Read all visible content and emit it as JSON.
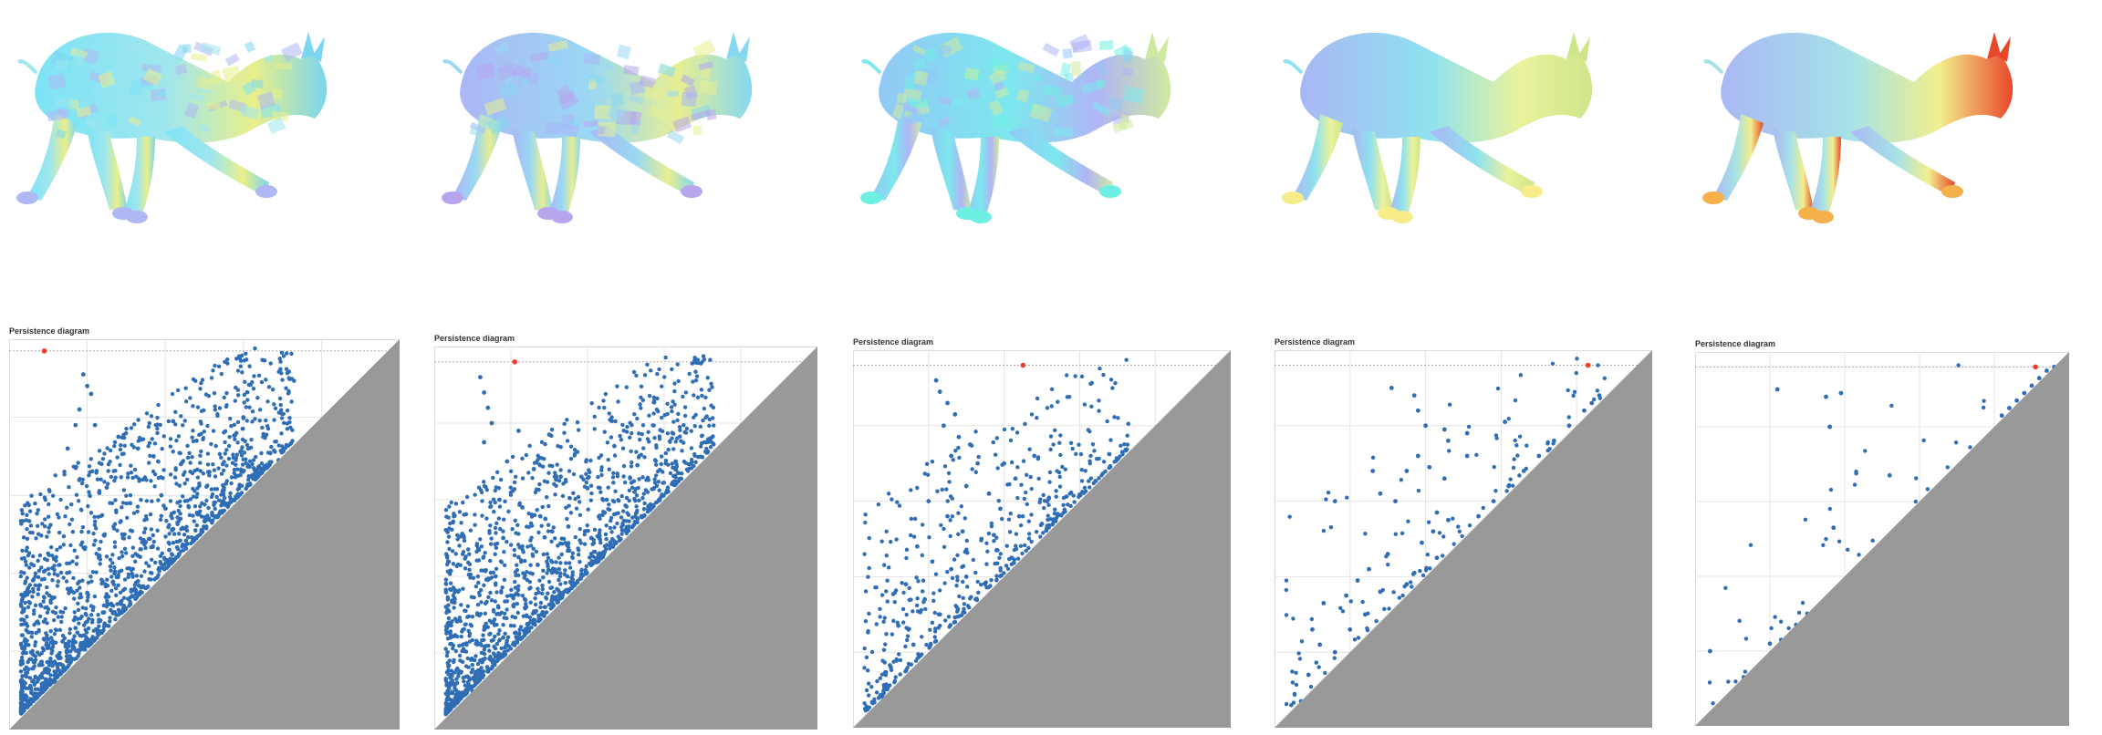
{
  "diagram_title": "Persistence diagram",
  "colors": {
    "point": "#2f6db5",
    "infinite_point": "#e8402a",
    "triangle": "#999999",
    "grid": "#e4e4e4",
    "dotted_line": "#aaaaaa"
  },
  "chart_data": [
    {
      "type": "scatter",
      "title": "Persistence diagram",
      "mesh_colormap": "cool-patchy",
      "point_count_estimate": 2600,
      "xlim": [
        0,
        1
      ],
      "ylim": [
        0,
        1
      ],
      "grid": true,
      "infinite_point": [
        0.09,
        0.97
      ],
      "points": [
        [
          0.19,
          0.91
        ],
        [
          0.2,
          0.88
        ],
        [
          0.21,
          0.86
        ],
        [
          0.18,
          0.82
        ],
        [
          0.17,
          0.78
        ],
        [
          0.22,
          0.78
        ],
        [
          0.15,
          0.72
        ],
        [
          0.42,
          0.79
        ],
        [
          0.6,
          0.8
        ],
        [
          0.28,
          0.75
        ],
        [
          0.33,
          0.72
        ],
        [
          0.37,
          0.7
        ],
        [
          0.44,
          0.68
        ],
        [
          0.51,
          0.66
        ],
        [
          0.48,
          0.74
        ],
        [
          0.55,
          0.62
        ],
        [
          0.61,
          0.6
        ],
        [
          0.64,
          0.55
        ],
        [
          0.69,
          0.69
        ],
        [
          0.74,
          0.72
        ],
        [
          0.25,
          0.62
        ],
        [
          0.31,
          0.58
        ],
        [
          0.39,
          0.6
        ],
        [
          0.46,
          0.57
        ],
        [
          0.52,
          0.55
        ],
        [
          0.57,
          0.52
        ],
        [
          0.29,
          0.5
        ],
        [
          0.35,
          0.48
        ],
        [
          0.41,
          0.46
        ],
        [
          0.47,
          0.44
        ],
        [
          0.23,
          0.44
        ],
        [
          0.27,
          0.4
        ],
        [
          0.33,
          0.38
        ],
        [
          0.38,
          0.36
        ],
        [
          0.2,
          0.35
        ],
        [
          0.24,
          0.3
        ],
        [
          0.29,
          0.28
        ],
        [
          0.17,
          0.26
        ],
        [
          0.21,
          0.22
        ],
        [
          0.15,
          0.18
        ],
        [
          0.12,
          0.12
        ],
        [
          0.1,
          0.08
        ]
      ]
    },
    {
      "type": "scatter",
      "title": "Persistence diagram",
      "mesh_colormap": "cool-patchy",
      "point_count_estimate": 1500,
      "xlim": [
        0,
        1
      ],
      "ylim": [
        0,
        1
      ],
      "grid": true,
      "infinite_point": [
        0.21,
        0.96
      ],
      "points": [
        [
          0.12,
          0.92
        ],
        [
          0.13,
          0.88
        ],
        [
          0.14,
          0.84
        ],
        [
          0.15,
          0.8
        ],
        [
          0.13,
          0.75
        ],
        [
          0.22,
          0.78
        ],
        [
          0.3,
          0.77
        ],
        [
          0.47,
          0.74
        ],
        [
          0.53,
          0.69
        ],
        [
          0.19,
          0.7
        ],
        [
          0.26,
          0.68
        ],
        [
          0.33,
          0.66
        ],
        [
          0.4,
          0.63
        ],
        [
          0.45,
          0.6
        ],
        [
          0.17,
          0.6
        ],
        [
          0.23,
          0.58
        ],
        [
          0.29,
          0.55
        ],
        [
          0.35,
          0.53
        ],
        [
          0.41,
          0.5
        ],
        [
          0.18,
          0.5
        ],
        [
          0.22,
          0.45
        ],
        [
          0.27,
          0.43
        ],
        [
          0.32,
          0.41
        ],
        [
          0.36,
          0.38
        ],
        [
          0.16,
          0.4
        ],
        [
          0.2,
          0.35
        ],
        [
          0.24,
          0.32
        ],
        [
          0.28,
          0.3
        ],
        [
          0.15,
          0.28
        ],
        [
          0.18,
          0.24
        ],
        [
          0.22,
          0.2
        ],
        [
          0.12,
          0.18
        ],
        [
          0.15,
          0.14
        ],
        [
          0.1,
          0.1
        ],
        [
          0.08,
          0.06
        ],
        [
          0.63,
          0.7
        ],
        [
          0.71,
          0.75
        ]
      ]
    },
    {
      "type": "scatter",
      "title": "Persistence diagram",
      "mesh_colormap": "cyan-smoothing",
      "point_count_estimate": 500,
      "xlim": [
        0,
        1
      ],
      "ylim": [
        0,
        1
      ],
      "grid": true,
      "infinite_point": [
        0.45,
        0.96
      ],
      "points": [
        [
          0.22,
          0.92
        ],
        [
          0.23,
          0.89
        ],
        [
          0.25,
          0.86
        ],
        [
          0.27,
          0.83
        ],
        [
          0.24,
          0.8
        ],
        [
          0.28,
          0.77
        ],
        [
          0.31,
          0.75
        ],
        [
          0.26,
          0.72
        ],
        [
          0.33,
          0.7
        ],
        [
          0.4,
          0.7
        ],
        [
          0.48,
          0.72
        ],
        [
          0.43,
          0.66
        ],
        [
          0.68,
          0.69
        ],
        [
          0.3,
          0.64
        ],
        [
          0.36,
          0.62
        ],
        [
          0.39,
          0.58
        ],
        [
          0.44,
          0.56
        ],
        [
          0.5,
          0.54
        ],
        [
          0.2,
          0.6
        ],
        [
          0.25,
          0.56
        ],
        [
          0.29,
          0.52
        ],
        [
          0.34,
          0.5
        ],
        [
          0.38,
          0.47
        ],
        [
          0.42,
          0.45
        ],
        [
          0.17,
          0.48
        ],
        [
          0.21,
          0.44
        ],
        [
          0.26,
          0.42
        ],
        [
          0.3,
          0.4
        ],
        [
          0.35,
          0.38
        ],
        [
          0.14,
          0.38
        ],
        [
          0.19,
          0.34
        ],
        [
          0.23,
          0.3
        ],
        [
          0.27,
          0.28
        ],
        [
          0.12,
          0.27
        ],
        [
          0.16,
          0.22
        ],
        [
          0.2,
          0.18
        ],
        [
          0.1,
          0.16
        ],
        [
          0.13,
          0.12
        ],
        [
          0.08,
          0.08
        ],
        [
          0.6,
          0.58
        ]
      ]
    },
    {
      "type": "scatter",
      "title": "Persistence diagram",
      "mesh_colormap": "rainbow-smooth",
      "point_count_estimate": 120,
      "xlim": [
        0,
        1
      ],
      "ylim": [
        0,
        1
      ],
      "grid": true,
      "infinite_point": [
        0.83,
        0.96
      ],
      "points": [
        [
          0.31,
          0.9
        ],
        [
          0.37,
          0.88
        ],
        [
          0.38,
          0.84
        ],
        [
          0.4,
          0.8
        ],
        [
          0.45,
          0.79
        ],
        [
          0.46,
          0.76
        ],
        [
          0.38,
          0.72
        ],
        [
          0.35,
          0.68
        ],
        [
          0.41,
          0.69
        ],
        [
          0.45,
          0.66
        ],
        [
          0.51,
          0.78
        ],
        [
          0.51,
          0.72
        ],
        [
          0.61,
          0.81
        ],
        [
          0.26,
          0.68
        ],
        [
          0.28,
          0.62
        ],
        [
          0.16,
          0.6
        ],
        [
          0.32,
          0.6
        ],
        [
          0.43,
          0.57
        ],
        [
          0.46,
          0.55
        ],
        [
          0.42,
          0.52
        ],
        [
          0.39,
          0.49
        ],
        [
          0.43,
          0.45
        ],
        [
          0.3,
          0.46
        ],
        [
          0.25,
          0.42
        ],
        [
          0.22,
          0.39
        ],
        [
          0.35,
          0.38
        ],
        [
          0.37,
          0.41
        ],
        [
          0.28,
          0.36
        ],
        [
          0.19,
          0.35
        ],
        [
          0.13,
          0.33
        ],
        [
          0.1,
          0.26
        ],
        [
          0.12,
          0.22
        ],
        [
          0.16,
          0.2
        ],
        [
          0.09,
          0.14
        ],
        [
          0.12,
          0.11
        ],
        [
          0.17,
          0.14
        ],
        [
          0.07,
          0.07
        ],
        [
          0.2,
          0.26
        ],
        [
          0.24,
          0.3
        ],
        [
          0.54,
          0.56
        ],
        [
          0.58,
          0.6
        ],
        [
          0.62,
          0.64
        ],
        [
          0.66,
          0.68
        ],
        [
          0.7,
          0.72
        ],
        [
          0.74,
          0.76
        ],
        [
          0.78,
          0.8
        ],
        [
          0.82,
          0.84
        ],
        [
          0.84,
          0.86
        ],
        [
          0.86,
          0.88
        ]
      ]
    },
    {
      "type": "scatter",
      "title": "Persistence diagram",
      "mesh_colormap": "rainbow-warm",
      "point_count_estimate": 40,
      "xlim": [
        0,
        1
      ],
      "ylim": [
        0,
        1
      ],
      "grid": true,
      "infinite_point": [
        0.91,
        0.96
      ],
      "points": [
        [
          0.22,
          0.9
        ],
        [
          0.35,
          0.88
        ],
        [
          0.39,
          0.89
        ],
        [
          0.36,
          0.8
        ],
        [
          0.52,
          0.67
        ],
        [
          0.37,
          0.53
        ],
        [
          0.04,
          0.2
        ],
        [
          0.13,
          0.13
        ],
        [
          0.2,
          0.22
        ],
        [
          0.23,
          0.23
        ],
        [
          0.27,
          0.27
        ],
        [
          0.3,
          0.3
        ],
        [
          0.34,
          0.33
        ],
        [
          0.37,
          0.36
        ],
        [
          0.4,
          0.39
        ],
        [
          0.43,
          0.42
        ],
        [
          0.46,
          0.45
        ],
        [
          0.82,
          0.83
        ],
        [
          0.84,
          0.85
        ],
        [
          0.86,
          0.87
        ],
        [
          0.88,
          0.89
        ],
        [
          0.9,
          0.91
        ],
        [
          0.92,
          0.93
        ],
        [
          0.94,
          0.95
        ],
        [
          0.96,
          0.96
        ]
      ]
    }
  ]
}
